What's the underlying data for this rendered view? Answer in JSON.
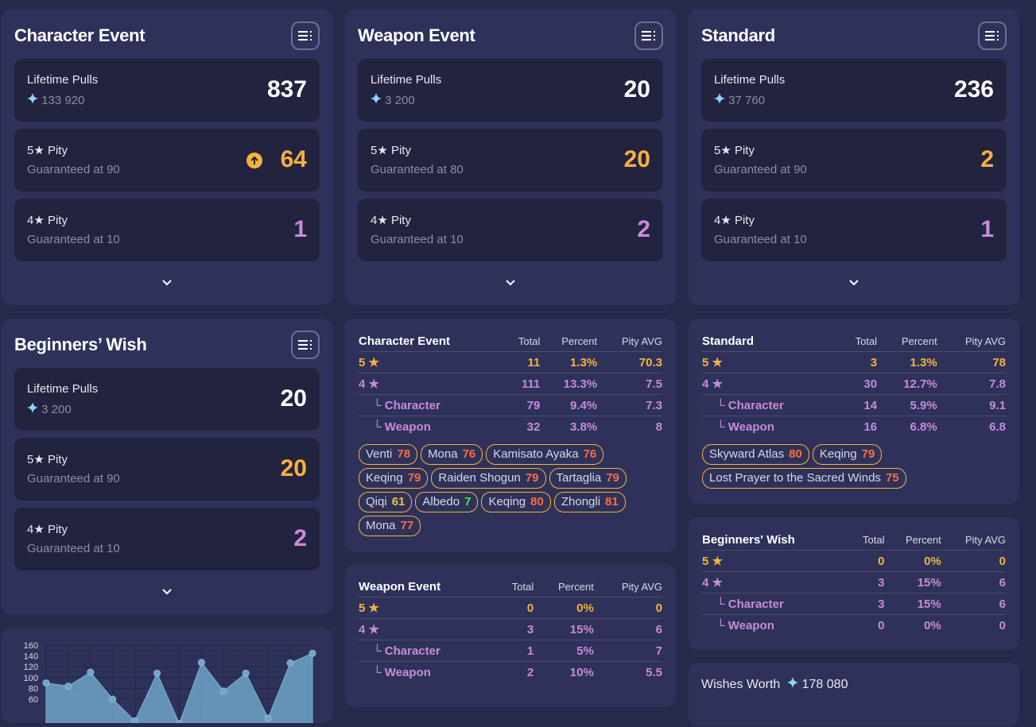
{
  "banners": [
    {
      "title": "Character Event",
      "lifetime_label": "Lifetime Pulls",
      "lifetime_value": "837",
      "primogems": "133 920",
      "five_label": "5★ Pity",
      "five_sub": "Guaranteed at 90",
      "five_value": "64",
      "five_arrow": true,
      "four_label": "4★ Pity",
      "four_sub": "Guaranteed at 10",
      "four_value": "1"
    },
    {
      "title": "Weapon Event",
      "lifetime_label": "Lifetime Pulls",
      "lifetime_value": "20",
      "primogems": "3 200",
      "five_label": "5★ Pity",
      "five_sub": "Guaranteed at 80",
      "five_value": "20",
      "five_arrow": false,
      "four_label": "4★ Pity",
      "four_sub": "Guaranteed at 10",
      "four_value": "2"
    },
    {
      "title": "Standard",
      "lifetime_label": "Lifetime Pulls",
      "lifetime_value": "236",
      "primogems": "37 760",
      "five_label": "5★ Pity",
      "five_sub": "Guaranteed at 90",
      "five_value": "2",
      "five_arrow": false,
      "four_label": "4★ Pity",
      "four_sub": "Guaranteed at 10",
      "four_value": "1"
    },
    {
      "title": "Beginners’ Wish",
      "lifetime_label": "Lifetime Pulls",
      "lifetime_value": "20",
      "primogems": "3 200",
      "five_label": "5★ Pity",
      "five_sub": "Guaranteed at 90",
      "five_value": "20",
      "five_arrow": false,
      "four_label": "4★ Pity",
      "four_sub": "Guaranteed at 10",
      "four_value": "2"
    }
  ],
  "columns": [
    "Total",
    "Percent",
    "Pity AVG"
  ],
  "tables": [
    {
      "title": "Character Event",
      "rows": [
        {
          "label": "5 ★",
          "cls": "g",
          "total": "11",
          "percent": "1.3%",
          "avg": "70.3"
        },
        {
          "label": "4 ★",
          "cls": "p",
          "total": "111",
          "percent": "13.3%",
          "avg": "7.5"
        },
        {
          "label": "└ Character",
          "cls": "p ind",
          "total": "79",
          "percent": "9.4%",
          "avg": "7.3"
        },
        {
          "label": "└ Weapon",
          "cls": "p ind",
          "total": "32",
          "percent": "3.8%",
          "avg": "8"
        }
      ],
      "tags": [
        {
          "name": "Venti",
          "pity": "78",
          "color": "#ff6a3d"
        },
        {
          "name": "Mona",
          "pity": "76",
          "color": "#ff6a3d"
        },
        {
          "name": "Kamisato Ayaka",
          "pity": "76",
          "color": "#ff6a3d"
        },
        {
          "name": "Keqing",
          "pity": "79",
          "color": "#ff6a3d"
        },
        {
          "name": "Raiden Shogun",
          "pity": "79",
          "color": "#ff6a3d"
        },
        {
          "name": "Tartaglia",
          "pity": "79",
          "color": "#ff6a3d"
        },
        {
          "name": "Qiqi",
          "pity": "61",
          "color": "#f5c33b"
        },
        {
          "name": "Albedo",
          "pity": "7",
          "color": "#56e04a"
        },
        {
          "name": "Keqing",
          "pity": "80",
          "color": "#ff6a3d"
        },
        {
          "name": "Zhongli",
          "pity": "81",
          "color": "#ff6a3d"
        },
        {
          "name": "Mona",
          "pity": "77",
          "color": "#ff6a3d"
        }
      ]
    },
    {
      "title": "Weapon Event",
      "rows": [
        {
          "label": "5 ★",
          "cls": "g",
          "total": "0",
          "percent": "0%",
          "avg": "0"
        },
        {
          "label": "4 ★",
          "cls": "p",
          "total": "3",
          "percent": "15%",
          "avg": "6"
        },
        {
          "label": "└ Character",
          "cls": "p ind",
          "total": "1",
          "percent": "5%",
          "avg": "7"
        },
        {
          "label": "└ Weapon",
          "cls": "p ind",
          "total": "2",
          "percent": "10%",
          "avg": "5.5"
        }
      ],
      "tags": []
    },
    {
      "title": "Standard",
      "rows": [
        {
          "label": "5 ★",
          "cls": "g",
          "total": "3",
          "percent": "1.3%",
          "avg": "78"
        },
        {
          "label": "4 ★",
          "cls": "p",
          "total": "30",
          "percent": "12.7%",
          "avg": "7.8"
        },
        {
          "label": "└ Character",
          "cls": "p ind",
          "total": "14",
          "percent": "5.9%",
          "avg": "9.1"
        },
        {
          "label": "└ Weapon",
          "cls": "p ind",
          "total": "16",
          "percent": "6.8%",
          "avg": "6.8"
        }
      ],
      "tags": [
        {
          "name": "Skyward Atlas",
          "pity": "80",
          "color": "#ff6a3d"
        },
        {
          "name": "Keqing",
          "pity": "79",
          "color": "#ff6a3d"
        },
        {
          "name": "Lost Prayer to the Sacred Winds",
          "pity": "75",
          "color": "#ff6a3d"
        }
      ]
    },
    {
      "title": "Beginners' Wish",
      "rows": [
        {
          "label": "5 ★",
          "cls": "g",
          "total": "0",
          "percent": "0%",
          "avg": "0"
        },
        {
          "label": "4 ★",
          "cls": "p",
          "total": "3",
          "percent": "15%",
          "avg": "6"
        },
        {
          "label": "└ Character",
          "cls": "p ind",
          "total": "3",
          "percent": "15%",
          "avg": "6"
        },
        {
          "label": "└ Weapon",
          "cls": "p ind",
          "total": "0",
          "percent": "0%",
          "avg": "0"
        }
      ],
      "tags": []
    }
  ],
  "wishes_worth": {
    "label": "Wishes Worth",
    "value": "178 080"
  },
  "chart_data": {
    "type": "area",
    "y_ticks": [
      "160",
      "140",
      "120",
      "100",
      "80",
      "60"
    ],
    "ylim": [
      60,
      160
    ],
    "x": [
      0,
      1,
      2,
      3,
      4,
      5,
      6,
      7,
      8,
      9,
      10,
      11,
      12
    ],
    "values": [
      90,
      84,
      110,
      60,
      20,
      108,
      15,
      128,
      75,
      108,
      25,
      127,
      145
    ],
    "color": "#6fa3c8"
  }
}
